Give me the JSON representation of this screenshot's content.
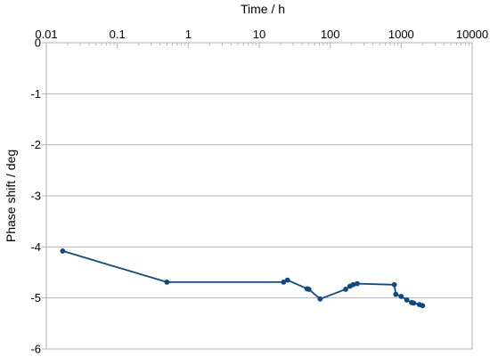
{
  "chart_data": {
    "type": "line",
    "xlabel": "Time / h",
    "ylabel": "Phase shift / deg",
    "xscale": "log",
    "xlim": [
      0.01,
      10000
    ],
    "ylim": [
      -6,
      0
    ],
    "x_axis_position": "top",
    "x_ticks": [
      0.01,
      0.1,
      1,
      10,
      100,
      1000,
      10000
    ],
    "x_tick_labels": [
      "0.01",
      "0.1",
      "1",
      "10",
      "100",
      "1000",
      "10000"
    ],
    "y_ticks": [
      0,
      -1,
      -2,
      -3,
      -4,
      -5,
      -6
    ],
    "y_tick_labels": [
      "0",
      "-1",
      "-2",
      "-3",
      "-4",
      "-5",
      "-6"
    ],
    "grid": "horizontal",
    "legend": "none",
    "series": [
      {
        "color": "#0b4a84",
        "marker": "circle",
        "x": [
          0.017,
          0.5,
          22,
          25,
          47,
          50,
          72,
          165,
          190,
          210,
          240,
          800,
          840,
          1000,
          1200,
          1400,
          1500,
          1800,
          2000
        ],
        "y": [
          -4.08,
          -4.69,
          -4.69,
          -4.65,
          -4.82,
          -4.83,
          -5.02,
          -4.83,
          -4.77,
          -4.74,
          -4.72,
          -4.74,
          -4.93,
          -4.97,
          -5.04,
          -5.09,
          -5.1,
          -5.13,
          -5.15
        ]
      }
    ]
  }
}
